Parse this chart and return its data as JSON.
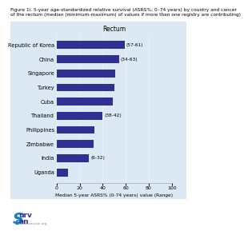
{
  "title_line1": "Figure 1i. 5-year age-standardized relative survival (ASRS%; 0–74 years) by country and cancer",
  "title_line2": "of the rectum (median (minimum-maximum) of values if more than one registry are contributing)",
  "chart_title": "Rectum",
  "countries": [
    "Republic of Korea",
    "China",
    "Singapore",
    "Turkey",
    "Cuba",
    "Thailand",
    "Philippines",
    "Zimbabwe",
    "India",
    "Uganda"
  ],
  "values": [
    59,
    54,
    51,
    50,
    49,
    40,
    33,
    32,
    28,
    10
  ],
  "annotations": {
    "Republic of Korea": "(57-61)",
    "China": "(34-63)",
    "Thailand": "(38-42)",
    "India": "(6-32)"
  },
  "bar_color": "#2e3192",
  "panel_bg": "#dce9f5",
  "fig_bg": "#ffffff",
  "xlabel": "Median 5-year ASRS% (0-74 years) value (Range)",
  "xlim": [
    0,
    100
  ],
  "xticks": [
    0,
    20,
    40,
    60,
    80,
    100
  ],
  "title_fontsize": 4.2,
  "chart_title_fontsize": 5.5,
  "label_fontsize": 4.8,
  "tick_fontsize": 4.5,
  "annot_fontsize": 4.2,
  "xlabel_fontsize": 4.2,
  "logo_S_color": "#1a7abf",
  "logo_text_color": "#2e3192",
  "logo_url_color": "#888888"
}
